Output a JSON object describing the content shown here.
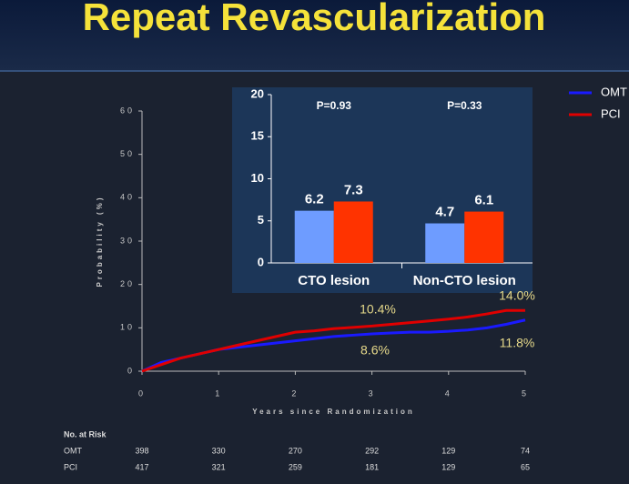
{
  "title": "Repeat Revascularization",
  "chart_data": [
    {
      "type": "line",
      "x_label": "Years since Randomization",
      "y_label": "Probability (%)",
      "x": [
        0,
        0.25,
        0.5,
        0.75,
        1,
        1.25,
        1.5,
        1.75,
        2,
        2.25,
        2.5,
        2.75,
        3,
        3.25,
        3.5,
        3.75,
        4,
        4.25,
        4.5,
        4.75,
        5
      ],
      "series": [
        {
          "name": "OMT",
          "color": "#1a1aff",
          "values": [
            0,
            2,
            3,
            4,
            5,
            5.5,
            6,
            6.5,
            7,
            7.5,
            8,
            8.3,
            8.6,
            8.8,
            9,
            9,
            9.2,
            9.5,
            10,
            10.8,
            11.8
          ]
        },
        {
          "name": "PCI",
          "color": "#e00000",
          "values": [
            0,
            1.5,
            3,
            4,
            5,
            6,
            7,
            8,
            9,
            9.3,
            9.8,
            10.1,
            10.4,
            10.8,
            11.2,
            11.6,
            12,
            12.5,
            13.2,
            14,
            14
          ]
        }
      ],
      "annotations": [
        "10.4%",
        "14.0%",
        "8.6%",
        "11.8%"
      ],
      "xlim": [
        0,
        5
      ],
      "xticks": [
        0,
        1,
        2,
        3,
        4,
        5
      ],
      "ylim": [
        0,
        60
      ],
      "yticks": [
        0,
        10,
        20,
        30,
        40,
        50,
        60
      ],
      "legend": "right"
    },
    {
      "type": "bar",
      "categories": [
        "CTO lesion",
        "Non-CTO lesion"
      ],
      "series": [
        {
          "name": "OMT",
          "color": "#6e9cff",
          "values": [
            6.2,
            4.7
          ]
        },
        {
          "name": "PCI",
          "color": "#ff3300",
          "values": [
            7.3,
            6.1
          ]
        }
      ],
      "annotations": [
        "P=0.93",
        "P=0.33"
      ],
      "ylim": [
        0,
        20
      ],
      "yticks": [
        0,
        5,
        10,
        15,
        20
      ]
    }
  ],
  "risk_table": {
    "title": "No. at Risk",
    "rows": [
      {
        "label": "OMT",
        "values": [
          398,
          330,
          270,
          292,
          129,
          74
        ]
      },
      {
        "label": "PCI",
        "values": [
          417,
          321,
          259,
          181,
          129,
          65
        ]
      }
    ]
  }
}
